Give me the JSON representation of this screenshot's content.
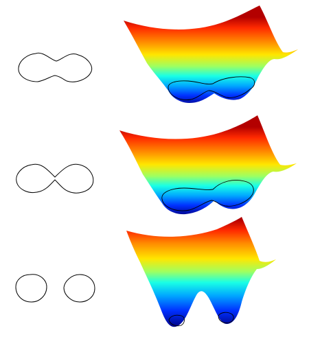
{
  "figure": {
    "panels": [
      {
        "stage": "one-component"
      },
      {
        "stage": "pinching"
      },
      {
        "stage": "two-components"
      }
    ]
  },
  "colors": {
    "jet": [
      "#00007f",
      "#0000ff",
      "#007fff",
      "#00ffff",
      "#7fff7f",
      "#ffff00",
      "#ff7f00",
      "#ff0000",
      "#7f0000"
    ],
    "contour": "#000000",
    "background": "#ffffff"
  }
}
